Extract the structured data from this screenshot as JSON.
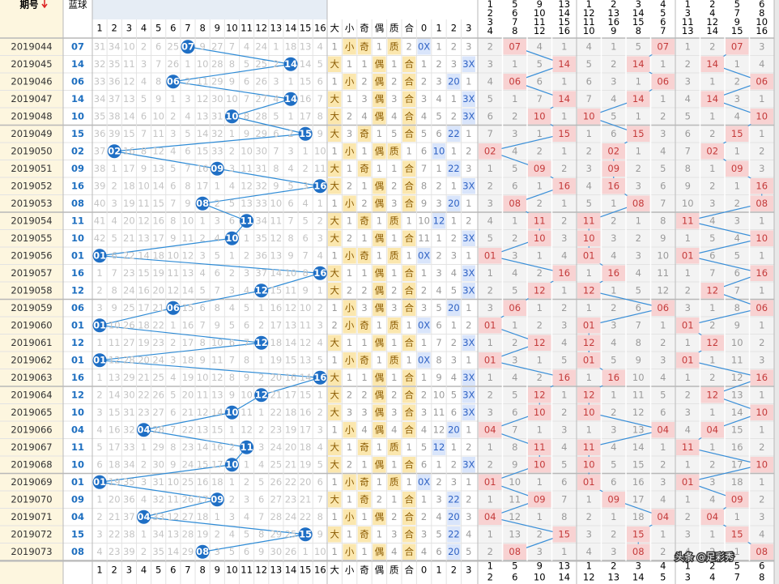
{
  "header": {
    "period": "期号",
    "blue": "蓝球",
    "positions": [
      1,
      2,
      3,
      4,
      5,
      6,
      7,
      8,
      9,
      10,
      11,
      12,
      13,
      14,
      15,
      16
    ],
    "attrs": [
      "大",
      "小",
      "奇",
      "偶",
      "质",
      "合",
      "0",
      "1",
      "2",
      "3"
    ],
    "zones": [
      [
        [
          1,
          2,
          3,
          4
        ],
        [
          5,
          6,
          7,
          8
        ],
        [
          9,
          10,
          11,
          12
        ],
        [
          13,
          14,
          15,
          16
        ]
      ],
      [
        [
          1,
          12,
          11,
          10
        ],
        [
          2,
          13,
          16,
          9
        ],
        [
          3,
          14,
          15,
          8
        ],
        [
          4,
          5,
          6,
          7
        ]
      ],
      [
        [
          1,
          3,
          11,
          13
        ],
        [
          2,
          4,
          12,
          14
        ],
        [
          5,
          7,
          9,
          15
        ],
        [
          6,
          8,
          10,
          16
        ]
      ]
    ]
  },
  "rows": [
    {
      "period": "2019044",
      "blue": "07",
      "pos": [
        31,
        34,
        10,
        2,
        6,
        25,
        null,
        9,
        27,
        7,
        4,
        24,
        1,
        18,
        13,
        4
      ],
      "attrs": [
        1,
        "小",
        "奇",
        1,
        "质",
        2,
        "0X",
        1,
        2,
        3
      ],
      "zones": [
        2,
        null,
        4,
        1,
        4,
        1,
        5,
        null,
        1,
        2,
        null,
        3
      ]
    },
    {
      "period": "2019045",
      "blue": "14",
      "pos": [
        32,
        35,
        11,
        3,
        7,
        26,
        1,
        10,
        28,
        8,
        5,
        25,
        2,
        null,
        14,
        5
      ],
      "attrs": [
        "大",
        1,
        1,
        "偶",
        1,
        "合",
        1,
        2,
        3,
        "3X"
      ],
      "zones": [
        3,
        1,
        5,
        null,
        5,
        2,
        null,
        1,
        2,
        null,
        1,
        4
      ]
    },
    {
      "period": "2019046",
      "blue": "06",
      "pos": [
        33,
        36,
        12,
        4,
        8,
        null,
        2,
        11,
        29,
        9,
        6,
        26,
        3,
        1,
        15,
        6
      ],
      "attrs": [
        1,
        "小",
        2,
        "偶",
        2,
        "合",
        2,
        3,
        "20",
        1
      ],
      "zones": [
        4,
        null,
        6,
        1,
        6,
        3,
        1,
        null,
        3,
        1,
        2,
        null
      ]
    },
    {
      "period": "2019047",
      "blue": "14",
      "pos": [
        34,
        37,
        13,
        5,
        9,
        1,
        3,
        12,
        30,
        10,
        7,
        27,
        4,
        null,
        16,
        7
      ],
      "attrs": [
        "大",
        1,
        3,
        "偶",
        3,
        "合",
        3,
        4,
        1,
        "3X"
      ],
      "zones": [
        5,
        1,
        7,
        null,
        7,
        4,
        null,
        1,
        4,
        null,
        3,
        1
      ]
    },
    {
      "period": "2019048",
      "blue": "10",
      "pos": [
        35,
        38,
        14,
        6,
        10,
        2,
        4,
        13,
        31,
        null,
        8,
        28,
        5,
        1,
        17,
        8
      ],
      "attrs": [
        "大",
        2,
        4,
        "偶",
        4,
        "合",
        4,
        5,
        2,
        "3X"
      ],
      "zones": [
        6,
        2,
        null,
        1,
        null,
        5,
        1,
        2,
        5,
        1,
        4,
        null
      ]
    },
    {
      "period": "2019049",
      "blue": "15",
      "pos": [
        36,
        39,
        15,
        7,
        11,
        3,
        5,
        14,
        32,
        1,
        9,
        29,
        6,
        2,
        null,
        9
      ],
      "attrs": [
        "大",
        3,
        "奇",
        1,
        5,
        "合",
        5,
        6,
        "22",
        1
      ],
      "zones": [
        7,
        3,
        1,
        null,
        1,
        6,
        null,
        3,
        6,
        2,
        null,
        1
      ]
    },
    {
      "period": "2019050",
      "blue": "02",
      "pos": [
        37,
        null,
        16,
        8,
        12,
        4,
        6,
        15,
        33,
        2,
        10,
        30,
        7,
        3,
        1,
        10
      ],
      "attrs": [
        1,
        "小",
        1,
        "偶",
        "质",
        1,
        6,
        "10",
        1,
        2
      ],
      "zones": [
        null,
        4,
        2,
        1,
        2,
        null,
        1,
        4,
        7,
        null,
        1,
        2
      ]
    },
    {
      "period": "2019051",
      "blue": "09",
      "pos": [
        38,
        1,
        17,
        9,
        13,
        5,
        7,
        16,
        null,
        3,
        11,
        31,
        8,
        4,
        2,
        11
      ],
      "attrs": [
        "大",
        1,
        "奇",
        1,
        1,
        "合",
        7,
        1,
        "22",
        3
      ],
      "zones": [
        1,
        5,
        null,
        2,
        3,
        null,
        2,
        5,
        8,
        1,
        null,
        3
      ]
    },
    {
      "period": "2019052",
      "blue": "16",
      "pos": [
        39,
        2,
        18,
        10,
        14,
        6,
        8,
        17,
        1,
        4,
        12,
        32,
        9,
        5,
        3,
        null
      ],
      "attrs": [
        "大",
        2,
        1,
        "偶",
        2,
        "合",
        8,
        2,
        1,
        "3X"
      ],
      "zones": [
        2,
        6,
        1,
        null,
        4,
        null,
        3,
        6,
        9,
        2,
        1,
        null
      ]
    },
    {
      "period": "2019053",
      "blue": "08",
      "pos": [
        40,
        3,
        19,
        11,
        15,
        7,
        9,
        null,
        2,
        5,
        13,
        33,
        10,
        6,
        4,
        1
      ],
      "attrs": [
        1,
        "小",
        2,
        "偶",
        3,
        "合",
        9,
        3,
        "20",
        1
      ],
      "zones": [
        3,
        null,
        2,
        1,
        5,
        1,
        null,
        7,
        10,
        3,
        2,
        null
      ]
    },
    {
      "period": "2019054",
      "blue": "11",
      "pos": [
        41,
        4,
        20,
        12,
        16,
        8,
        10,
        1,
        3,
        6,
        null,
        34,
        11,
        7,
        5,
        2
      ],
      "attrs": [
        "大",
        1,
        "奇",
        1,
        "质",
        1,
        10,
        "12",
        1,
        2
      ],
      "zones": [
        4,
        1,
        null,
        2,
        null,
        2,
        1,
        8,
        null,
        4,
        3,
        1
      ]
    },
    {
      "period": "2019055",
      "blue": "10",
      "pos": [
        42,
        5,
        21,
        13,
        17,
        9,
        11,
        2,
        4,
        null,
        1,
        35,
        12,
        8,
        6,
        3
      ],
      "attrs": [
        "大",
        2,
        1,
        "偶",
        1,
        "合",
        11,
        1,
        2,
        "3X"
      ],
      "zones": [
        5,
        2,
        null,
        3,
        null,
        3,
        2,
        9,
        1,
        5,
        4,
        null
      ]
    },
    {
      "period": "2019056",
      "blue": "01",
      "pos": [
        null,
        6,
        22,
        14,
        18,
        10,
        12,
        3,
        5,
        1,
        2,
        36,
        13,
        9,
        7,
        4
      ],
      "attrs": [
        1,
        "小",
        "奇",
        1,
        "质",
        1,
        "0X",
        2,
        3,
        1
      ],
      "zones": [
        null,
        3,
        1,
        4,
        null,
        4,
        3,
        10,
        null,
        6,
        5,
        1
      ]
    },
    {
      "period": "2019057",
      "blue": "16",
      "pos": [
        1,
        7,
        23,
        15,
        19,
        11,
        13,
        4,
        6,
        2,
        3,
        37,
        14,
        10,
        8,
        null
      ],
      "attrs": [
        "大",
        1,
        1,
        "偶",
        1,
        "合",
        1,
        3,
        4,
        "3X"
      ],
      "zones": [
        1,
        4,
        2,
        null,
        1,
        null,
        4,
        11,
        1,
        7,
        6,
        null
      ]
    },
    {
      "period": "2019058",
      "blue": "12",
      "pos": [
        2,
        8,
        24,
        16,
        20,
        12,
        14,
        5,
        7,
        3,
        4,
        null,
        15,
        11,
        9,
        1
      ],
      "attrs": [
        "大",
        2,
        2,
        "偶",
        2,
        "合",
        2,
        4,
        5,
        "3X"
      ],
      "zones": [
        2,
        5,
        null,
        1,
        null,
        1,
        5,
        12,
        2,
        null,
        7,
        1
      ]
    },
    {
      "period": "2019059",
      "blue": "06",
      "pos": [
        3,
        9,
        25,
        17,
        21,
        null,
        15,
        6,
        8,
        4,
        5,
        1,
        16,
        12,
        10,
        2
      ],
      "attrs": [
        1,
        "小",
        3,
        "偶",
        3,
        "合",
        3,
        5,
        "20",
        1
      ],
      "zones": [
        3,
        null,
        1,
        2,
        1,
        2,
        6,
        null,
        3,
        1,
        8,
        null
      ]
    },
    {
      "period": "2019060",
      "blue": "01",
      "pos": [
        null,
        10,
        26,
        18,
        22,
        1,
        16,
        7,
        9,
        5,
        6,
        2,
        17,
        13,
        11,
        3
      ],
      "attrs": [
        2,
        "小",
        "奇",
        1,
        "质",
        1,
        "0X",
        6,
        1,
        2
      ],
      "zones": [
        null,
        1,
        2,
        3,
        null,
        3,
        7,
        1,
        null,
        2,
        9,
        1
      ]
    },
    {
      "period": "2019061",
      "blue": "12",
      "pos": [
        1,
        11,
        27,
        19,
        23,
        2,
        17,
        8,
        10,
        6,
        7,
        null,
        18,
        14,
        12,
        4
      ],
      "attrs": [
        "大",
        1,
        1,
        "偶",
        1,
        "合",
        1,
        7,
        2,
        "3X"
      ],
      "zones": [
        1,
        2,
        null,
        4,
        null,
        4,
        8,
        2,
        1,
        null,
        10,
        2
      ]
    },
    {
      "period": "2019062",
      "blue": "01",
      "pos": [
        null,
        12,
        28,
        20,
        24,
        3,
        18,
        9,
        11,
        7,
        8,
        1,
        19,
        15,
        13,
        5
      ],
      "attrs": [
        1,
        "小",
        "奇",
        1,
        "质",
        1,
        "0X",
        8,
        3,
        1
      ],
      "zones": [
        null,
        3,
        1,
        5,
        null,
        5,
        9,
        3,
        null,
        1,
        11,
        3
      ]
    },
    {
      "period": "2019063",
      "blue": "16",
      "pos": [
        1,
        13,
        29,
        21,
        25,
        4,
        19,
        10,
        12,
        8,
        9,
        2,
        20,
        16,
        14,
        null
      ],
      "attrs": [
        "大",
        1,
        1,
        "偶",
        1,
        "合",
        1,
        9,
        4,
        "3X"
      ],
      "zones": [
        1,
        4,
        2,
        null,
        1,
        null,
        10,
        4,
        1,
        2,
        12,
        null
      ]
    },
    {
      "period": "2019064",
      "blue": "12",
      "pos": [
        2,
        14,
        30,
        22,
        26,
        5,
        20,
        11,
        13,
        9,
        10,
        null,
        21,
        17,
        15,
        1
      ],
      "attrs": [
        "大",
        2,
        2,
        "偶",
        2,
        "合",
        2,
        10,
        5,
        "3X"
      ],
      "zones": [
        2,
        5,
        null,
        1,
        null,
        1,
        11,
        5,
        2,
        null,
        13,
        1
      ]
    },
    {
      "period": "2019065",
      "blue": "10",
      "pos": [
        3,
        15,
        31,
        23,
        27,
        6,
        21,
        12,
        14,
        null,
        11,
        1,
        22,
        18,
        16,
        2
      ],
      "attrs": [
        "大",
        3,
        3,
        "偶",
        3,
        "合",
        3,
        11,
        6,
        "3X"
      ],
      "zones": [
        3,
        6,
        null,
        2,
        null,
        2,
        12,
        6,
        3,
        1,
        14,
        null
      ]
    },
    {
      "period": "2019066",
      "blue": "04",
      "pos": [
        4,
        16,
        32,
        null,
        28,
        7,
        22,
        13,
        15,
        1,
        12,
        2,
        23,
        19,
        17,
        3
      ],
      "attrs": [
        1,
        "小",
        4,
        "偶",
        4,
        "合",
        4,
        12,
        "20",
        1
      ],
      "zones": [
        null,
        7,
        1,
        3,
        1,
        3,
        13,
        null,
        4,
        null,
        15,
        1
      ]
    },
    {
      "period": "2019067",
      "blue": "11",
      "pos": [
        5,
        17,
        33,
        1,
        29,
        8,
        23,
        14,
        16,
        2,
        null,
        3,
        24,
        20,
        18,
        4
      ],
      "attrs": [
        "大",
        1,
        "奇",
        1,
        "质",
        1,
        5,
        "12",
        1,
        2
      ],
      "zones": [
        1,
        8,
        null,
        4,
        null,
        4,
        14,
        1,
        null,
        1,
        16,
        2
      ]
    },
    {
      "period": "2019068",
      "blue": "10",
      "pos": [
        6,
        18,
        34,
        2,
        30,
        9,
        24,
        15,
        17,
        null,
        1,
        4,
        25,
        21,
        19,
        5
      ],
      "attrs": [
        "大",
        2,
        1,
        "偶",
        1,
        "合",
        6,
        1,
        2,
        "3X"
      ],
      "zones": [
        2,
        9,
        null,
        5,
        null,
        5,
        15,
        2,
        1,
        2,
        17,
        null
      ]
    },
    {
      "period": "2019069",
      "blue": "01",
      "pos": [
        null,
        19,
        35,
        3,
        31,
        10,
        25,
        16,
        18,
        1,
        2,
        5,
        26,
        22,
        20,
        6
      ],
      "attrs": [
        1,
        "小",
        "奇",
        1,
        "质",
        1,
        "0X",
        2,
        3,
        1
      ],
      "zones": [
        null,
        10,
        1,
        6,
        null,
        6,
        16,
        3,
        null,
        3,
        18,
        1
      ]
    },
    {
      "period": "2019070",
      "blue": "09",
      "pos": [
        1,
        20,
        36,
        4,
        32,
        11,
        26,
        17,
        null,
        2,
        3,
        6,
        27,
        23,
        21,
        7
      ],
      "attrs": [
        "大",
        1,
        "奇",
        2,
        1,
        "合",
        1,
        3,
        "22",
        2
      ],
      "zones": [
        1,
        11,
        null,
        7,
        1,
        null,
        17,
        4,
        1,
        4,
        null,
        2
      ]
    },
    {
      "period": "2019071",
      "blue": "04",
      "pos": [
        2,
        21,
        37,
        null,
        33,
        12,
        27,
        18,
        1,
        3,
        4,
        7,
        28,
        24,
        22,
        8
      ],
      "attrs": [
        1,
        "小",
        1,
        "偶",
        2,
        "合",
        2,
        4,
        "20",
        3
      ],
      "zones": [
        null,
        12,
        1,
        8,
        2,
        1,
        18,
        null,
        2,
        null,
        1,
        3
      ]
    },
    {
      "period": "2019072",
      "blue": "15",
      "pos": [
        3,
        22,
        38,
        1,
        34,
        13,
        28,
        19,
        2,
        4,
        5,
        8,
        29,
        25,
        null,
        9
      ],
      "attrs": [
        "大",
        1,
        "奇",
        1,
        3,
        "合",
        3,
        5,
        "22",
        4
      ],
      "zones": [
        1,
        13,
        2,
        null,
        3,
        2,
        null,
        1,
        3,
        1,
        null,
        4
      ]
    },
    {
      "period": "2019073",
      "blue": "08",
      "pos": [
        4,
        23,
        39,
        2,
        35,
        14,
        29,
        null,
        3,
        5,
        6,
        9,
        30,
        26,
        1,
        10
      ],
      "attrs": [
        1,
        "小",
        1,
        "偶",
        4,
        "合",
        4,
        6,
        "20",
        5
      ],
      "zones": [
        2,
        null,
        3,
        1,
        4,
        3,
        null,
        2,
        4,
        2,
        1,
        null
      ]
    }
  ],
  "watermark": "头条 @足彩秀"
}
